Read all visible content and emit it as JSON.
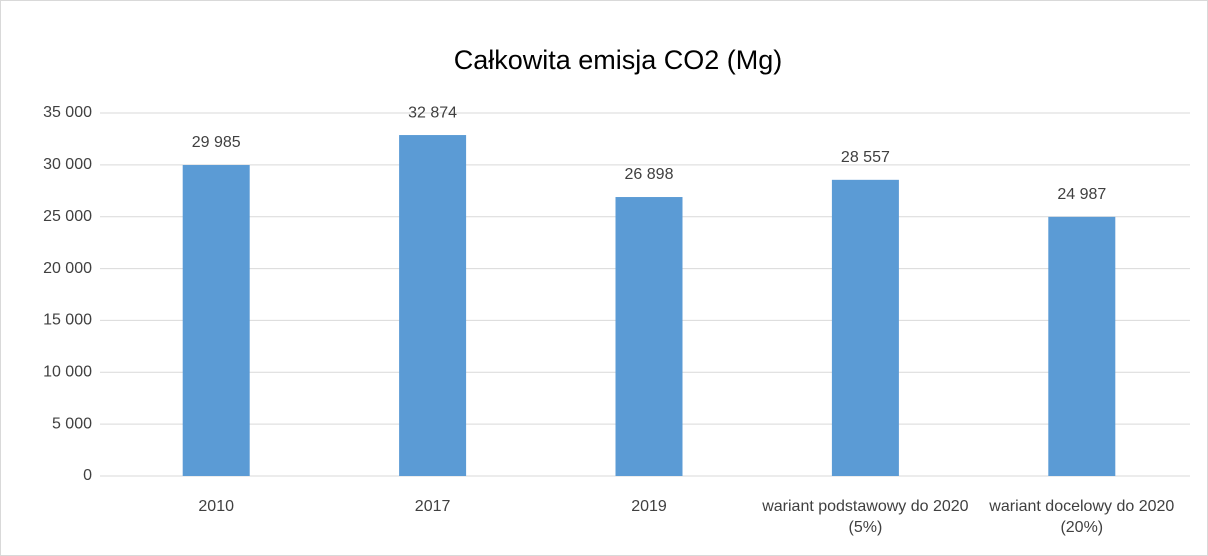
{
  "chart_data": {
    "type": "bar",
    "title": "Całkowita emisja CO2 (Mg)",
    "categories": [
      "2010",
      "2017",
      "2019",
      "wariant podstawowy do 2020 (5%)",
      "wariant docelowy do 2020 (20%)"
    ],
    "values": [
      29985,
      32874,
      26898,
      28557,
      24987
    ],
    "value_labels": [
      "29 985",
      "32 874",
      "26 898",
      "28 557",
      "24 987"
    ],
    "color": "#5b9bd5",
    "ylim": [
      0,
      35000
    ],
    "yticks": [
      0,
      {
        "value": 5000,
        "label": "5 000"
      },
      {
        "value": 10000,
        "label": "10 000"
      },
      {
        "value": 15000,
        "label": "15 000"
      },
      {
        "value": 20000,
        "label": "20 000"
      },
      {
        "value": 25000,
        "label": "25 000"
      },
      {
        "value": 30000,
        "label": "30 000"
      },
      {
        "value": 35000,
        "label": "35 000"
      }
    ],
    "grid": true
  }
}
